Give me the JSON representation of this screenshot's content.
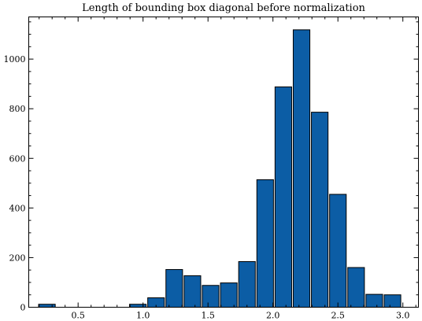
{
  "chart_data": {
    "type": "bar",
    "title": "Length of bounding box diagonal before normalization",
    "xlabel": "",
    "ylabel": "",
    "xlim": [
      0.12,
      3.12
    ],
    "ylim": [
      0,
      1170
    ],
    "bin_width": 0.14,
    "bins": [
      {
        "x0": 0.19,
        "x1": 0.33,
        "count": 12
      },
      {
        "x0": 0.33,
        "x1": 0.47,
        "count": 0
      },
      {
        "x0": 0.47,
        "x1": 0.61,
        "count": 0
      },
      {
        "x0": 0.61,
        "x1": 0.75,
        "count": 0
      },
      {
        "x0": 0.75,
        "x1": 0.89,
        "count": 0
      },
      {
        "x0": 0.89,
        "x1": 1.03,
        "count": 12
      },
      {
        "x0": 1.03,
        "x1": 1.17,
        "count": 38
      },
      {
        "x0": 1.17,
        "x1": 1.31,
        "count": 152
      },
      {
        "x0": 1.31,
        "x1": 1.45,
        "count": 127
      },
      {
        "x0": 1.45,
        "x1": 1.59,
        "count": 88
      },
      {
        "x0": 1.59,
        "x1": 1.73,
        "count": 98
      },
      {
        "x0": 1.73,
        "x1": 1.87,
        "count": 184
      },
      {
        "x0": 1.87,
        "x1": 2.01,
        "count": 514
      },
      {
        "x0": 2.01,
        "x1": 2.15,
        "count": 888
      },
      {
        "x0": 2.15,
        "x1": 2.29,
        "count": 1118
      },
      {
        "x0": 2.29,
        "x1": 2.43,
        "count": 786
      },
      {
        "x0": 2.43,
        "x1": 2.57,
        "count": 455
      },
      {
        "x0": 2.57,
        "x1": 2.71,
        "count": 160
      },
      {
        "x0": 2.71,
        "x1": 2.85,
        "count": 52
      },
      {
        "x0": 2.85,
        "x1": 2.99,
        "count": 50
      }
    ],
    "x_ticks": [
      "0.5",
      "1.0",
      "1.5",
      "2.0",
      "2.5",
      "3.0"
    ],
    "y_ticks": [
      "0",
      "200",
      "400",
      "600",
      "800",
      "1000"
    ],
    "grid": false,
    "legend": "none",
    "colors": {
      "bar_fill": "#0C5DA5",
      "bar_edge": "#000000"
    }
  }
}
